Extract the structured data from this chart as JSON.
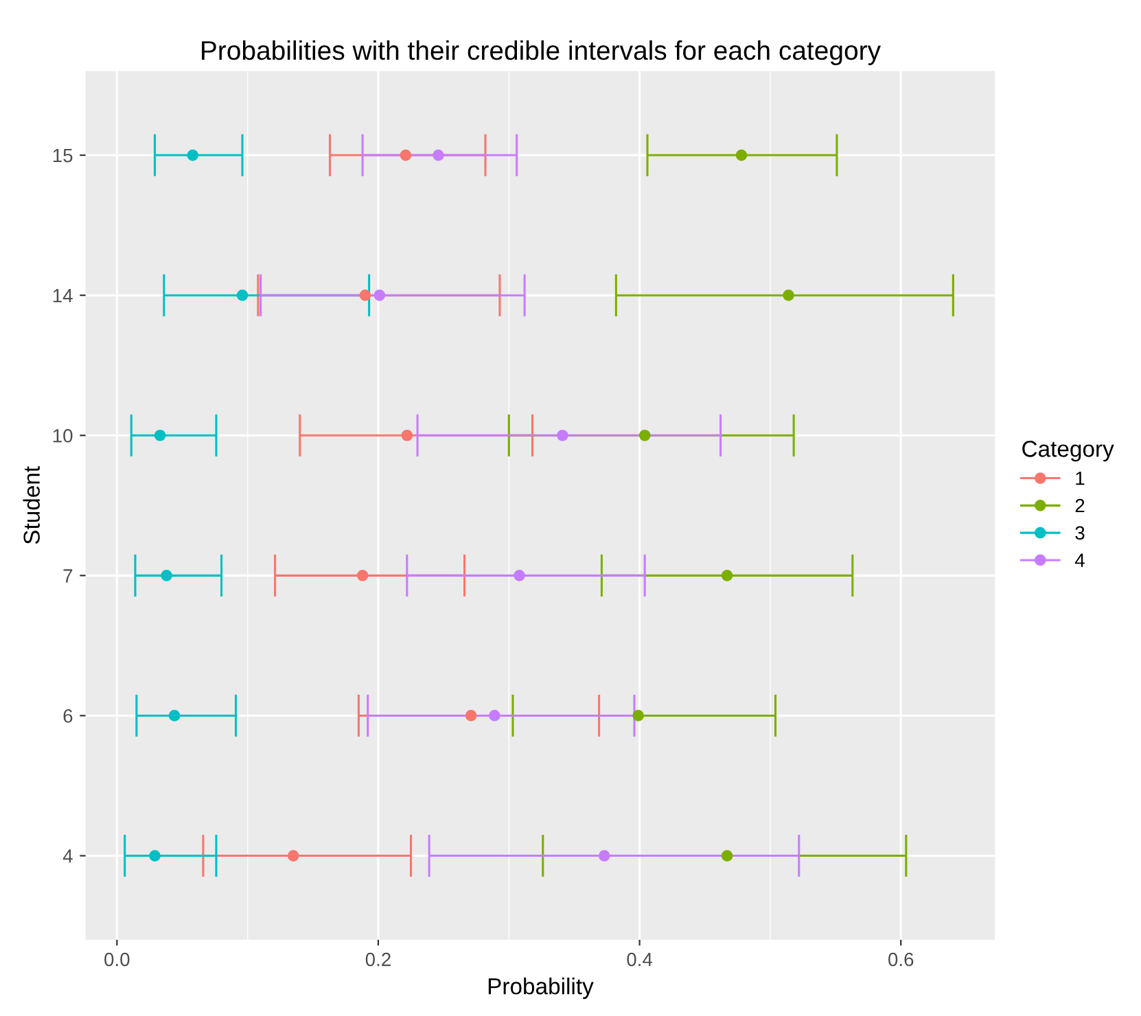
{
  "chart_data": {
    "type": "scatter",
    "orientation": "horizontal",
    "title": "Probabilities with their credible intervals for each category",
    "xlabel": "Probability",
    "ylabel": "Student",
    "legend_title": "Category",
    "legend": "right",
    "grid": true,
    "marker": "circle",
    "categories": [
      "15",
      "14",
      "10",
      "7",
      "6",
      "4"
    ],
    "xlim": [
      -0.024,
      0.672
    ],
    "xticks": [
      {
        "value": 0,
        "label": "0.0"
      },
      0.2,
      0.4,
      0.6
    ],
    "series": [
      {
        "name": "1",
        "color": "#f8766d",
        "values": [
          0.221,
          0.19,
          0.222,
          0.188,
          0.271,
          0.135
        ],
        "errors": [
          [
            0.163,
            0.282
          ],
          [
            0.108,
            0.293
          ],
          [
            0.14,
            0.318
          ],
          [
            0.121,
            0.266
          ],
          [
            0.185,
            0.369
          ],
          [
            0.066,
            0.225
          ]
        ]
      },
      {
        "name": "2",
        "color": "#7cae00",
        "values": [
          0.478,
          0.514,
          0.404,
          0.467,
          0.399,
          0.467
        ],
        "errors": [
          [
            0.406,
            0.551
          ],
          [
            0.382,
            0.64
          ],
          [
            0.3,
            0.518
          ],
          [
            0.371,
            0.563
          ],
          [
            0.303,
            0.504
          ],
          [
            0.326,
            0.604
          ]
        ]
      },
      {
        "name": "3",
        "color": "#00bfc4",
        "values": [
          0.058,
          0.096,
          0.033,
          0.038,
          0.044,
          0.029
        ],
        "errors": [
          [
            0.029,
            0.096
          ],
          [
            0.036,
            0.193
          ],
          [
            0.011,
            0.076
          ],
          [
            0.014,
            0.08
          ],
          [
            0.015,
            0.091
          ],
          [
            0.006,
            0.076
          ]
        ]
      },
      {
        "name": "4",
        "color": "#c77cff",
        "values": [
          0.246,
          0.201,
          0.341,
          0.308,
          0.289,
          0.373
        ],
        "errors": [
          [
            0.188,
            0.306
          ],
          [
            0.11,
            0.312
          ],
          [
            0.23,
            0.462
          ],
          [
            0.222,
            0.404
          ],
          [
            0.192,
            0.396
          ],
          [
            0.239,
            0.522
          ]
        ]
      }
    ]
  }
}
